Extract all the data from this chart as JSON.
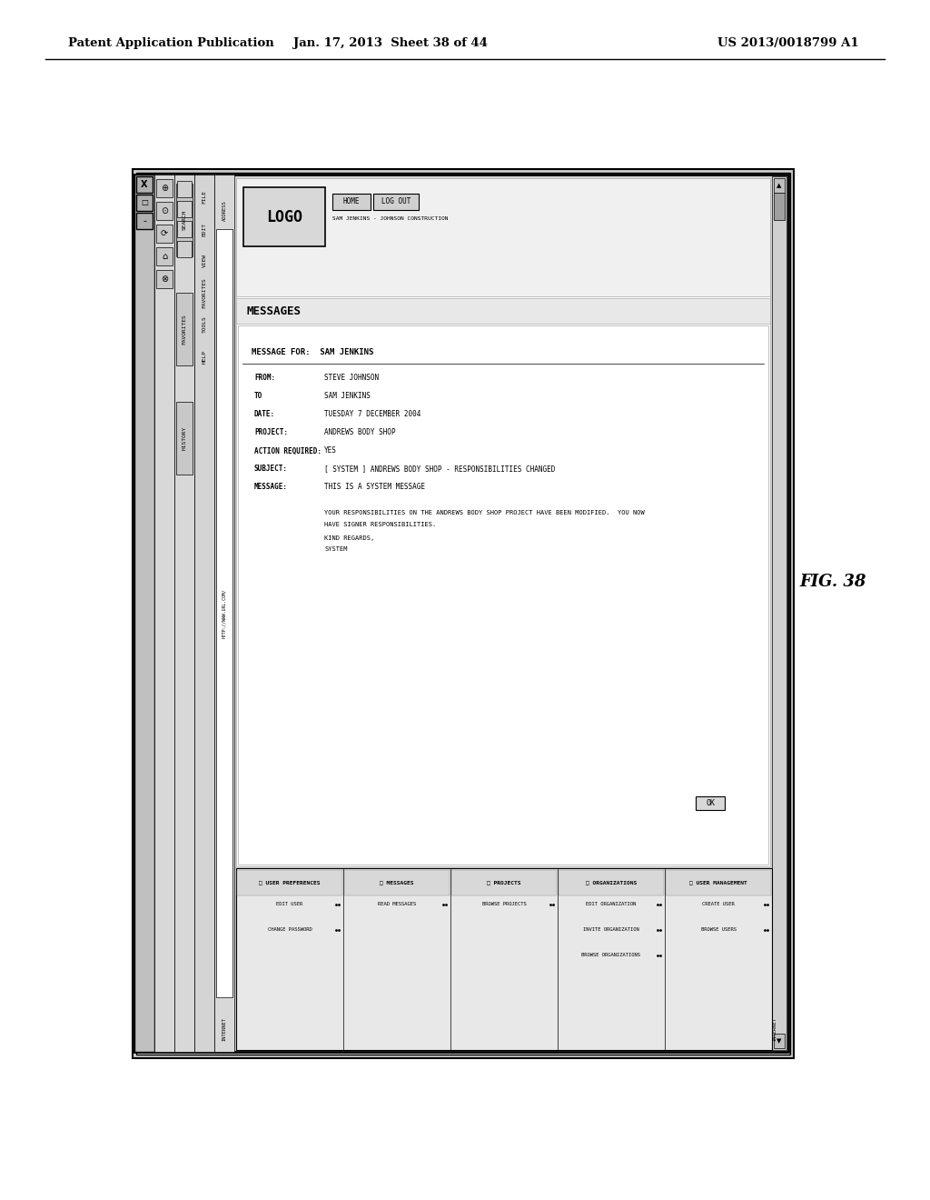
{
  "page_header_left": "Patent Application Publication",
  "page_header_mid": "Jan. 17, 2013  Sheet 38 of 44",
  "page_header_right": "US 2013/0018799 A1",
  "fig_label": "FIG. 38",
  "bg_color": "#ffffff",
  "message_title": "MESSAGES",
  "message_for": "MESSAGE FOR:  SAM JENKINS",
  "fields": [
    "FROM:",
    "TO",
    "DATE:",
    "PROJECT:",
    "ACTION REQUIRED:",
    "SUBJECT:",
    "MESSAGE:"
  ],
  "field_values": [
    "STEVE JOHNSON",
    "SAM JENKINS",
    "TUESDAY 7 DECEMBER 2004",
    "ANDREWS BODY SHOP",
    "YES",
    "[ SYSTEM ] ANDREWS BODY SHOP - RESPONSIBILITIES CHANGED",
    "THIS IS A SYSTEM MESSAGE"
  ],
  "message_body_line1": "YOUR RESPONSIBILITIES ON THE ANDREWS BODY SHOP PROJECT HAVE BEEN MODIFIED.  YOU NOW",
  "message_body_line2": "HAVE SIGNER RESPONSIBILITIES.",
  "message_footer1": "KIND REGARDS,",
  "message_footer2": "SYSTEM",
  "logo_text": "LOGO",
  "home_text": "HOME",
  "logout_text": "LOG OUT",
  "user_info": "SAM JENKINS - JOHNSON CONSTRUCTION",
  "ok_button": "OK",
  "browser_bar_text": "HTTP://WWW.URL.COM/",
  "internet_text": "INTERNET",
  "menu_bar_items": [
    "FILE",
    "EDIT",
    "VIEW",
    "FAVORITES",
    "TOOLS",
    "HELP"
  ],
  "nav_items": [
    [
      "USER PREFERENCES",
      true
    ],
    [
      "EDIT USER",
      false
    ],
    [
      "CHANGE PASSWORD",
      false
    ],
    [
      "MESSAGES",
      true
    ],
    [
      "READ MESSAGES",
      false
    ],
    [
      "PROJECTS",
      true
    ],
    [
      "BROWSE PROJECTS",
      false
    ],
    [
      "ORGANIZATIONS",
      true
    ],
    [
      "EDIT ORGANIZATION",
      false
    ],
    [
      "INVITE ORGANIZATION",
      false
    ],
    [
      "BROWSE ORGANIZATIONS",
      false
    ],
    [
      "USER MANAGEMENT",
      true
    ],
    [
      "CREATE USER",
      false
    ],
    [
      "BROWSE USERS",
      false
    ]
  ]
}
